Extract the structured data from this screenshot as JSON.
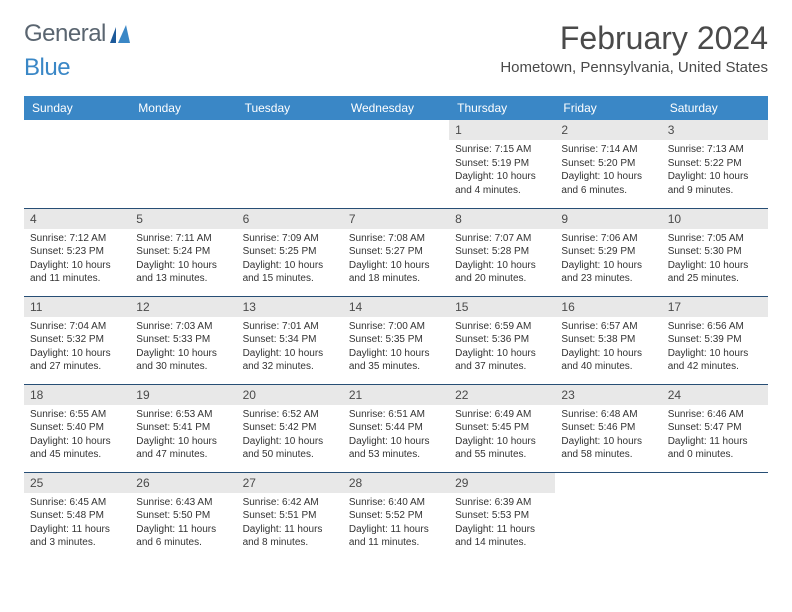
{
  "logo": {
    "general": "General",
    "blue": "Blue"
  },
  "title": "February 2024",
  "location": "Hometown, Pennsylvania, United States",
  "style": {
    "header_bg": "#3a87c6",
    "header_fg": "#ffffff",
    "daynum_bg": "#e8e8e8",
    "rule_color": "#274e75",
    "page_bg": "#ffffff"
  },
  "day_names": [
    "Sunday",
    "Monday",
    "Tuesday",
    "Wednesday",
    "Thursday",
    "Friday",
    "Saturday"
  ],
  "weeks": [
    [
      null,
      null,
      null,
      null,
      {
        "n": "1",
        "sr": "7:15 AM",
        "ss": "5:19 PM",
        "dl": "10 hours and 4 minutes."
      },
      {
        "n": "2",
        "sr": "7:14 AM",
        "ss": "5:20 PM",
        "dl": "10 hours and 6 minutes."
      },
      {
        "n": "3",
        "sr": "7:13 AM",
        "ss": "5:22 PM",
        "dl": "10 hours and 9 minutes."
      }
    ],
    [
      {
        "n": "4",
        "sr": "7:12 AM",
        "ss": "5:23 PM",
        "dl": "10 hours and 11 minutes."
      },
      {
        "n": "5",
        "sr": "7:11 AM",
        "ss": "5:24 PM",
        "dl": "10 hours and 13 minutes."
      },
      {
        "n": "6",
        "sr": "7:09 AM",
        "ss": "5:25 PM",
        "dl": "10 hours and 15 minutes."
      },
      {
        "n": "7",
        "sr": "7:08 AM",
        "ss": "5:27 PM",
        "dl": "10 hours and 18 minutes."
      },
      {
        "n": "8",
        "sr": "7:07 AM",
        "ss": "5:28 PM",
        "dl": "10 hours and 20 minutes."
      },
      {
        "n": "9",
        "sr": "7:06 AM",
        "ss": "5:29 PM",
        "dl": "10 hours and 23 minutes."
      },
      {
        "n": "10",
        "sr": "7:05 AM",
        "ss": "5:30 PM",
        "dl": "10 hours and 25 minutes."
      }
    ],
    [
      {
        "n": "11",
        "sr": "7:04 AM",
        "ss": "5:32 PM",
        "dl": "10 hours and 27 minutes."
      },
      {
        "n": "12",
        "sr": "7:03 AM",
        "ss": "5:33 PM",
        "dl": "10 hours and 30 minutes."
      },
      {
        "n": "13",
        "sr": "7:01 AM",
        "ss": "5:34 PM",
        "dl": "10 hours and 32 minutes."
      },
      {
        "n": "14",
        "sr": "7:00 AM",
        "ss": "5:35 PM",
        "dl": "10 hours and 35 minutes."
      },
      {
        "n": "15",
        "sr": "6:59 AM",
        "ss": "5:36 PM",
        "dl": "10 hours and 37 minutes."
      },
      {
        "n": "16",
        "sr": "6:57 AM",
        "ss": "5:38 PM",
        "dl": "10 hours and 40 minutes."
      },
      {
        "n": "17",
        "sr": "6:56 AM",
        "ss": "5:39 PM",
        "dl": "10 hours and 42 minutes."
      }
    ],
    [
      {
        "n": "18",
        "sr": "6:55 AM",
        "ss": "5:40 PM",
        "dl": "10 hours and 45 minutes."
      },
      {
        "n": "19",
        "sr": "6:53 AM",
        "ss": "5:41 PM",
        "dl": "10 hours and 47 minutes."
      },
      {
        "n": "20",
        "sr": "6:52 AM",
        "ss": "5:42 PM",
        "dl": "10 hours and 50 minutes."
      },
      {
        "n": "21",
        "sr": "6:51 AM",
        "ss": "5:44 PM",
        "dl": "10 hours and 53 minutes."
      },
      {
        "n": "22",
        "sr": "6:49 AM",
        "ss": "5:45 PM",
        "dl": "10 hours and 55 minutes."
      },
      {
        "n": "23",
        "sr": "6:48 AM",
        "ss": "5:46 PM",
        "dl": "10 hours and 58 minutes."
      },
      {
        "n": "24",
        "sr": "6:46 AM",
        "ss": "5:47 PM",
        "dl": "11 hours and 0 minutes."
      }
    ],
    [
      {
        "n": "25",
        "sr": "6:45 AM",
        "ss": "5:48 PM",
        "dl": "11 hours and 3 minutes."
      },
      {
        "n": "26",
        "sr": "6:43 AM",
        "ss": "5:50 PM",
        "dl": "11 hours and 6 minutes."
      },
      {
        "n": "27",
        "sr": "6:42 AM",
        "ss": "5:51 PM",
        "dl": "11 hours and 8 minutes."
      },
      {
        "n": "28",
        "sr": "6:40 AM",
        "ss": "5:52 PM",
        "dl": "11 hours and 11 minutes."
      },
      {
        "n": "29",
        "sr": "6:39 AM",
        "ss": "5:53 PM",
        "dl": "11 hours and 14 minutes."
      },
      null,
      null
    ]
  ],
  "labels": {
    "sunrise": "Sunrise:",
    "sunset": "Sunset:",
    "daylight": "Daylight:"
  }
}
